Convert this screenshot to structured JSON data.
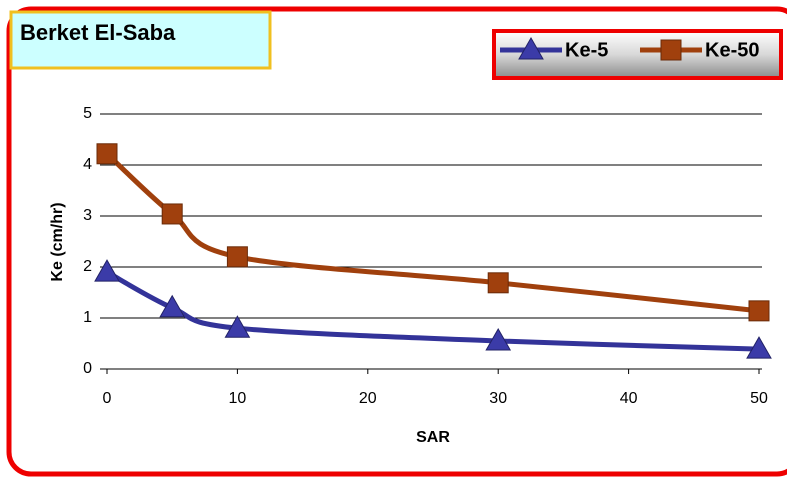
{
  "chart_data": {
    "type": "line",
    "title": "Berket El-Saba",
    "x_label": "SAR",
    "y_label": "Ke (cm/hr)",
    "x": [
      0,
      5,
      10,
      30,
      50
    ],
    "series": [
      {
        "name": "Ke-5",
        "color": "#333399",
        "marker": "triangle",
        "values": [
          1.9,
          1.2,
          0.8,
          0.55,
          0.39
        ]
      },
      {
        "name": "Ke-50",
        "color": "#a0400d",
        "marker": "square",
        "values": [
          4.22,
          3.04,
          2.2,
          1.69,
          1.14
        ]
      }
    ],
    "xlim": [
      0,
      50
    ],
    "xticks": [
      0,
      10,
      20,
      30,
      40,
      50
    ],
    "ylim": [
      0,
      5
    ],
    "yticks": [
      0,
      1,
      2,
      3,
      4,
      5
    ],
    "grid": true,
    "smooth": true,
    "legend": "top-right"
  }
}
